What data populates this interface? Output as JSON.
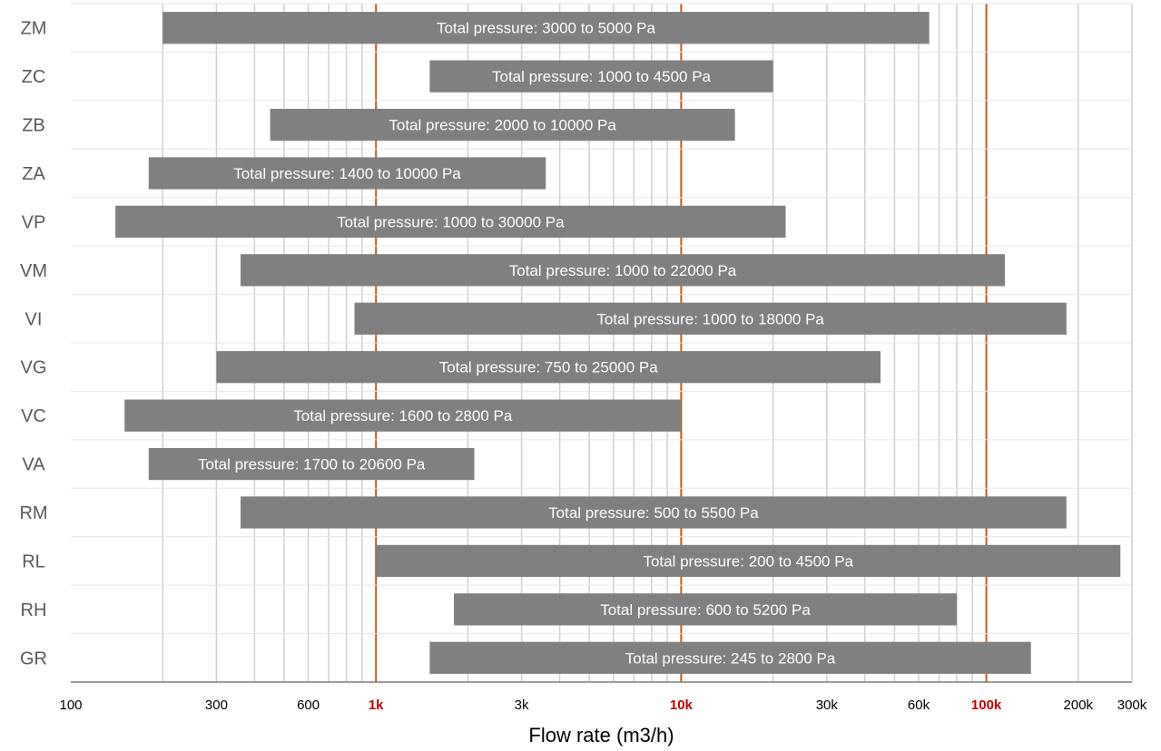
{
  "chart_data": {
    "type": "bar",
    "orientation": "horizontal",
    "xscale": "log",
    "xlim": [
      100,
      300000
    ],
    "xlabel": "Flow rate (m3/h)",
    "ylabel": "",
    "title": "",
    "grid": true,
    "legend": "none",
    "x_ticks": [
      {
        "value": 100,
        "label": "100",
        "major": false
      },
      {
        "value": 300,
        "label": "300",
        "major": false
      },
      {
        "value": 600,
        "label": "600",
        "major": false
      },
      {
        "value": 1000,
        "label": "1k",
        "major": true
      },
      {
        "value": 3000,
        "label": "3k",
        "major": false
      },
      {
        "value": 10000,
        "label": "10k",
        "major": true
      },
      {
        "value": 30000,
        "label": "30k",
        "major": false
      },
      {
        "value": 60000,
        "label": "60k",
        "major": false
      },
      {
        "value": 100000,
        "label": "100k",
        "major": true
      },
      {
        "value": 200000,
        "label": "200k",
        "major": false
      },
      {
        "value": 300000,
        "label": "300k",
        "major": false
      }
    ],
    "bars": [
      {
        "category": "ZM",
        "start": 200,
        "end": 65000,
        "label": "Total pressure: 3000 to 5000 Pa"
      },
      {
        "category": "ZC",
        "start": 1500,
        "end": 20000,
        "label": "Total pressure: 1000 to 4500 Pa"
      },
      {
        "category": "ZB",
        "start": 450,
        "end": 15000,
        "label": "Total pressure: 2000 to 10000 Pa"
      },
      {
        "category": "ZA",
        "start": 180,
        "end": 3600,
        "label": "Total pressure: 1400 to 10000 Pa"
      },
      {
        "category": "VP",
        "start": 140,
        "end": 22000,
        "label": "Total pressure: 1000 to 30000 Pa"
      },
      {
        "category": "VM",
        "start": 360,
        "end": 115000,
        "label": "Total pressure: 1000 to 22000 Pa"
      },
      {
        "category": "VI",
        "start": 850,
        "end": 183000,
        "label": "Total pressure: 1000 to 18000 Pa"
      },
      {
        "category": "VG",
        "start": 300,
        "end": 45000,
        "label": "Total pressure: 750 to 25000 Pa"
      },
      {
        "category": "VC",
        "start": 150,
        "end": 10000,
        "label": "Total pressure: 1600 to 2800 Pa"
      },
      {
        "category": "VA",
        "start": 180,
        "end": 2100,
        "label": "Total pressure: 1700 to 20600 Pa"
      },
      {
        "category": "RM",
        "start": 360,
        "end": 183000,
        "label": "Total pressure: 500 to 5500 Pa"
      },
      {
        "category": "RL",
        "start": 1000,
        "end": 275000,
        "label": "Total pressure: 200 to 4500 Pa"
      },
      {
        "category": "RH",
        "start": 1800,
        "end": 80000,
        "label": "Total pressure: 600 to 5200 Pa"
      },
      {
        "category": "GR",
        "start": 1500,
        "end": 140000,
        "label": "Total pressure: 245 to 2800 Pa"
      }
    ],
    "colors": {
      "bar": "#808080",
      "bar_label": "#ffffff",
      "major_gridline": "#c55a11",
      "minor_gridline": "#d0d0d0",
      "category_label": "#595959",
      "major_tick_label": "#c00000",
      "row_separator": "#e6e6e6"
    }
  }
}
